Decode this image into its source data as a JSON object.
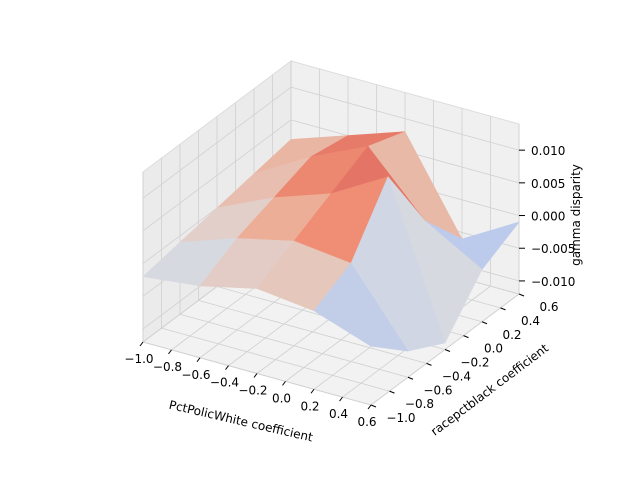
{
  "chart_data": {
    "type": "surface3d",
    "colormap": "coolwarm",
    "xlabel": "PctPolicWhite coefficient",
    "ylabel": "racepctblack coefficient",
    "zlabel": "gamma disparity",
    "xticks": [
      "−1.0",
      "−0.8",
      "−0.6",
      "−0.4",
      "−0.2",
      "0.0",
      "0.2",
      "0.4",
      "0.6"
    ],
    "yticks": [
      "−1.0",
      "−0.8",
      "−0.6",
      "−0.4",
      "−0.2",
      "0.0",
      "0.2",
      "0.4",
      "0.6"
    ],
    "zticks": [
      "−0.010",
      "−0.005",
      "0.000",
      "0.005",
      "0.010"
    ],
    "xlim": [
      -1.0,
      0.6
    ],
    "ylim": [
      -1.0,
      0.6
    ],
    "zlim": [
      -0.012,
      0.014
    ],
    "grid": true,
    "surface": {
      "x": [
        -1.0,
        -0.6,
        -0.2,
        0.2,
        0.6
      ],
      "y": [
        -1.0,
        -0.6,
        -0.2,
        0.2,
        0.6
      ],
      "z": [
        [
          -0.002,
          -0.001,
          0.0,
          0.001,
          0.002
        ],
        [
          -0.001,
          0.002,
          0.004,
          0.006,
          0.005
        ],
        [
          0.001,
          0.004,
          0.007,
          0.01,
          0.008
        ],
        [
          0.0,
          0.003,
          0.012,
          0.001,
          -0.006
        ],
        [
          -0.003,
          -0.008,
          -0.011,
          -0.004,
          -0.001
        ]
      ]
    }
  }
}
